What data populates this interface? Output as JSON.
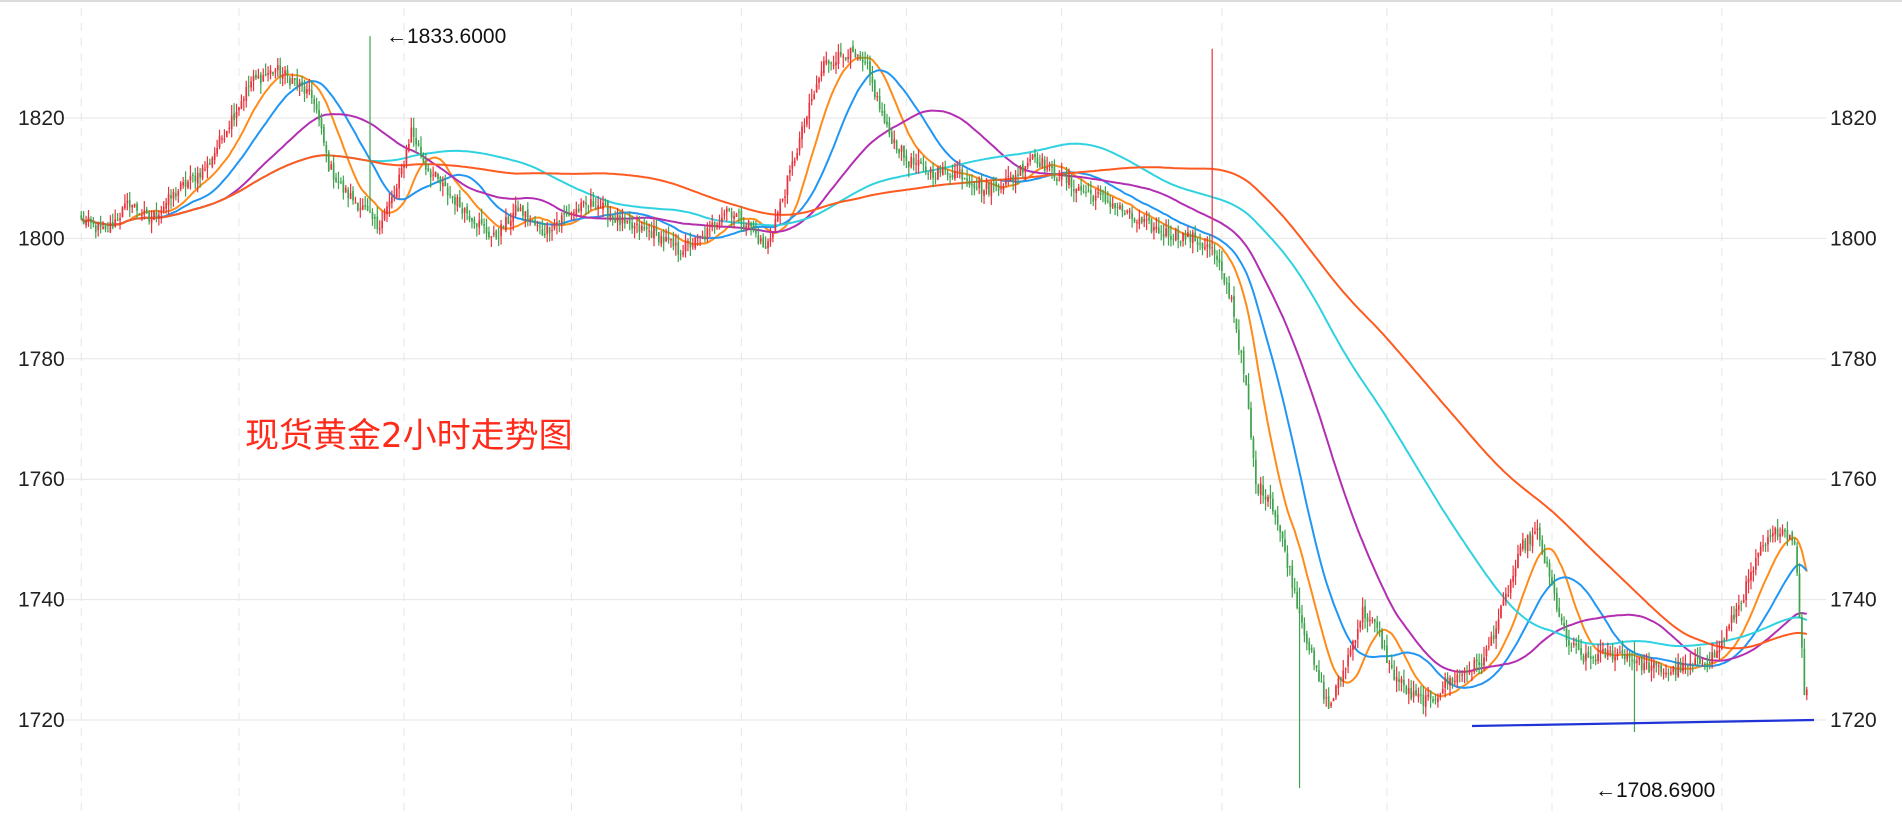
{
  "chart_data": {
    "type": "candlestick",
    "title": "现货黄金2小时走势图",
    "ylim": [
      1704,
      1836
    ],
    "y_ticks": [
      1720,
      1740,
      1760,
      1780,
      1800,
      1820
    ],
    "grid": true,
    "colors": {
      "up": "#e8323c",
      "down": "#3fa34d",
      "grid": "#e6e6e6",
      "support_line": "#1f33d6",
      "caption": "#ff2a1a"
    },
    "annotations": [
      {
        "label": "←1833.6000",
        "value": 1833.6
      },
      {
        "label": "←1708.6900",
        "value": 1708.69
      }
    ],
    "support_line": {
      "from_value": 1719.0,
      "to_value": 1720.0
    },
    "close_path": [
      [
        0,
        1803
      ],
      [
        10,
        1801
      ],
      [
        20,
        1806
      ],
      [
        28,
        1803
      ],
      [
        40,
        1808
      ],
      [
        52,
        1812
      ],
      [
        62,
        1820
      ],
      [
        70,
        1826
      ],
      [
        80,
        1828
      ],
      [
        88,
        1826
      ],
      [
        96,
        1823
      ],
      [
        102,
        1812
      ],
      [
        108,
        1808
      ],
      [
        116,
        1805
      ],
      [
        122,
        1802
      ],
      [
        130,
        1808
      ],
      [
        136,
        1818
      ],
      [
        142,
        1812
      ],
      [
        150,
        1808
      ],
      [
        160,
        1804
      ],
      [
        170,
        1800
      ],
      [
        180,
        1805
      ],
      [
        190,
        1801
      ],
      [
        200,
        1804
      ],
      [
        212,
        1806
      ],
      [
        224,
        1802
      ],
      [
        236,
        1801
      ],
      [
        246,
        1798
      ],
      [
        256,
        1800
      ],
      [
        266,
        1805
      ],
      [
        276,
        1802
      ],
      [
        282,
        1798
      ],
      [
        290,
        1808
      ],
      [
        298,
        1819
      ],
      [
        306,
        1829
      ],
      [
        316,
        1831
      ],
      [
        324,
        1828
      ],
      [
        332,
        1818
      ],
      [
        340,
        1813
      ],
      [
        350,
        1811
      ],
      [
        362,
        1811
      ],
      [
        372,
        1808
      ],
      [
        384,
        1810
      ],
      [
        392,
        1814
      ],
      [
        400,
        1811
      ],
      [
        412,
        1808
      ],
      [
        424,
        1806
      ],
      [
        434,
        1803
      ],
      [
        440,
        1802
      ],
      [
        446,
        1801
      ],
      [
        458,
        1800
      ],
      [
        466,
        1798
      ],
      [
        474,
        1790
      ],
      [
        480,
        1775
      ],
      [
        484,
        1759
      ],
      [
        490,
        1757
      ],
      [
        496,
        1748
      ],
      [
        502,
        1738
      ],
      [
        508,
        1729
      ],
      [
        514,
        1722
      ],
      [
        520,
        1728
      ],
      [
        528,
        1738
      ],
      [
        534,
        1735
      ],
      [
        540,
        1728
      ],
      [
        548,
        1724
      ],
      [
        556,
        1723
      ],
      [
        562,
        1726
      ],
      [
        570,
        1728
      ],
      [
        578,
        1730
      ],
      [
        586,
        1739
      ],
      [
        594,
        1749
      ],
      [
        600,
        1751
      ],
      [
        606,
        1742
      ],
      [
        612,
        1733
      ],
      [
        620,
        1730
      ],
      [
        628,
        1731
      ],
      [
        636,
        1731
      ],
      [
        644,
        1729
      ],
      [
        654,
        1728
      ],
      [
        664,
        1729
      ],
      [
        674,
        1731
      ],
      [
        684,
        1740
      ],
      [
        692,
        1748
      ],
      [
        700,
        1752
      ],
      [
        706,
        1750
      ],
      [
        710,
        1725
      ]
    ],
    "candle_wicks": [
      {
        "index": 119,
        "high": 1833.6,
        "low": 1815
      },
      {
        "index": 466,
        "high": 1831.5,
        "low": 1807
      },
      {
        "index": 502,
        "high": 1742,
        "low": 1708.69
      },
      {
        "index": 640,
        "high": 1733,
        "low": 1718
      }
    ],
    "moving_averages": [
      {
        "period": 5,
        "color": "#ff8c1a"
      },
      {
        "period": 10,
        "color": "#2196f3"
      },
      {
        "period": 20,
        "color": "#b32fb2"
      },
      {
        "period": 40,
        "color": "#2fd2e0"
      },
      {
        "period": 60,
        "color": "#ff5a1f"
      }
    ]
  }
}
